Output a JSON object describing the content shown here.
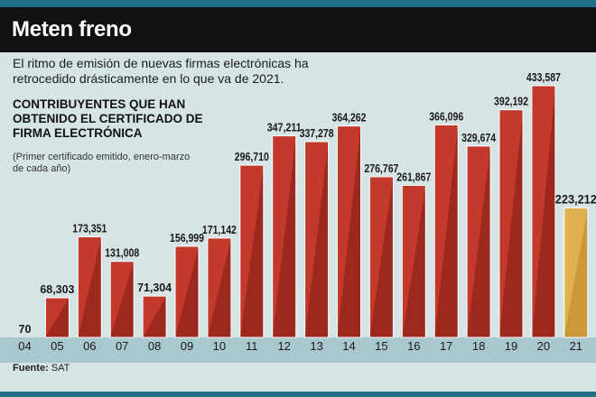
{
  "header": {
    "title": "Meten freno"
  },
  "subtitle": "El ritmo de emisión de nuevas firmas electrónicas ha retrocedido drásticamente en lo que va de 2021.",
  "source": {
    "label": "Fuente:",
    "value": "SAT"
  },
  "colors": {
    "bar": "#c33a2d",
    "bar_dark": "#7c1a12",
    "highlight": "#e0b14e",
    "highlight_dark": "#b9852a",
    "header_bg": "#111111",
    "axis_band": "#a9c8ce",
    "frame": "#1f6f86"
  },
  "chart_data": {
    "type": "bar",
    "title": "CONTRIBUYENTES QUE HAN OBTENIDO EL CERTIFICADO DE FIRMA ELECTRÓNICA",
    "note": "(Primer certificado emitido, enero-marzo de cada año)",
    "categories": [
      "04",
      "05",
      "06",
      "07",
      "08",
      "09",
      "10",
      "11",
      "12",
      "13",
      "14",
      "15",
      "16",
      "17",
      "18",
      "19",
      "20",
      "21"
    ],
    "values": [
      70,
      68303,
      173351,
      131008,
      71304,
      156999,
      171142,
      296710,
      347211,
      337278,
      364262,
      276767,
      261867,
      366096,
      329674,
      392192,
      433587,
      223212
    ],
    "value_labels": [
      "70",
      "68,303",
      "173,351",
      "131,008",
      "71,304",
      "156,999",
      "171,142",
      "296,710",
      "347,211",
      "337,278",
      "364,262",
      "276,767",
      "261,867",
      "366,096",
      "329,674",
      "392,192",
      "433,587",
      "223,212"
    ],
    "highlight_index": 17,
    "xlabel": "",
    "ylabel": "",
    "ylim": [
      0,
      433587
    ],
    "grid": false,
    "legend": "none"
  }
}
